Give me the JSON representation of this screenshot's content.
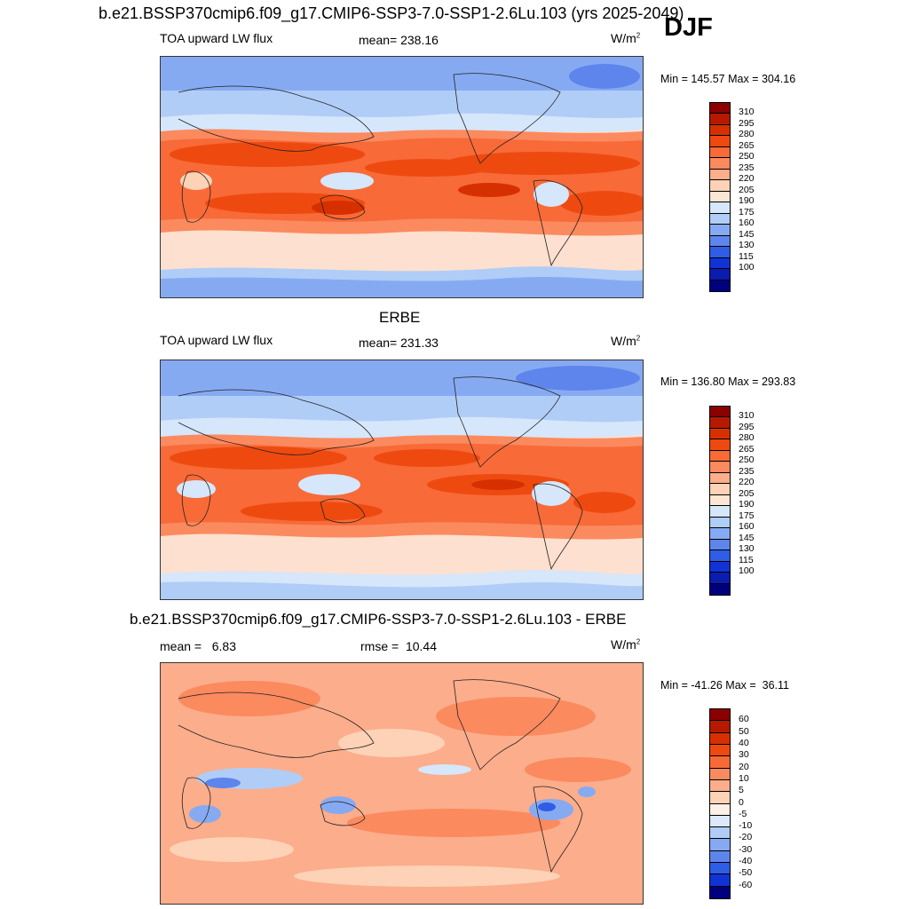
{
  "header": {
    "title": "b.e21.BSSP370cmip6.f09_g17.CMIP6-SSP3-7.0-SSP1-2.6Lu.103 (yrs 2025-2049)",
    "season": "DJF"
  },
  "panels": [
    {
      "title": "",
      "variable_label": "TOA upward LW flux",
      "stat_label": "mean= 238.16",
      "units": "W/m",
      "units_sup": "2",
      "range_text": "Min = 145.57 Max = 304.16",
      "colorbar": {
        "labels": [
          "310",
          "295",
          "280",
          "265",
          "250",
          "235",
          "220",
          "205",
          "190",
          "175",
          "160",
          "145",
          "130",
          "115",
          "100"
        ],
        "colors": [
          "#8b0000",
          "#b51a00",
          "#d73000",
          "#ee4a10",
          "#f86a38",
          "#fb8a5f",
          "#fcad8b",
          "#fdd2b6",
          "#fde6d4",
          "#d6e6fb",
          "#b0cdf7",
          "#86aaf2",
          "#5e85ec",
          "#2f5de6",
          "#1133d4",
          "#0a1db0",
          "#00007f"
        ]
      }
    },
    {
      "title": "ERBE",
      "variable_label": "TOA upward LW flux",
      "stat_label": "mean= 231.33",
      "units": "W/m",
      "units_sup": "2",
      "range_text": "Min = 136.80 Max = 293.83",
      "colorbar": {
        "labels": [
          "310",
          "295",
          "280",
          "265",
          "250",
          "235",
          "220",
          "205",
          "190",
          "175",
          "160",
          "145",
          "130",
          "115",
          "100"
        ],
        "colors": [
          "#8b0000",
          "#b51a00",
          "#d73000",
          "#ee4a10",
          "#f86a38",
          "#fb8a5f",
          "#fcad8b",
          "#fdd2b6",
          "#fde6d4",
          "#d6e6fb",
          "#b0cdf7",
          "#86aaf2",
          "#5e85ec",
          "#2f5de6",
          "#1133d4",
          "#0a1db0",
          "#00007f"
        ]
      }
    },
    {
      "title": "b.e21.BSSP370cmip6.f09_g17.CMIP6-SSP3-7.0-SSP1-2.6Lu.103 - ERBE",
      "variable_label": "mean =   6.83",
      "stat_label": "rmse =  10.44",
      "units": "W/m",
      "units_sup": "2",
      "range_text": "Min = -41.26 Max =  36.11",
      "colorbar": {
        "labels": [
          "60",
          "50",
          "40",
          "30",
          "20",
          "10",
          "5",
          "0",
          "-5",
          "-10",
          "-20",
          "-30",
          "-40",
          "-50",
          "-60"
        ],
        "colors": [
          "#8b0000",
          "#b51a00",
          "#d73000",
          "#ee4a10",
          "#f86a38",
          "#fb8a5f",
          "#fcad8b",
          "#fdd2b6",
          "#fef0e6",
          "#dce8fb",
          "#b0cdf7",
          "#86aaf2",
          "#5e85ec",
          "#2f5de6",
          "#1133d4",
          "#00007f"
        ]
      }
    }
  ]
}
